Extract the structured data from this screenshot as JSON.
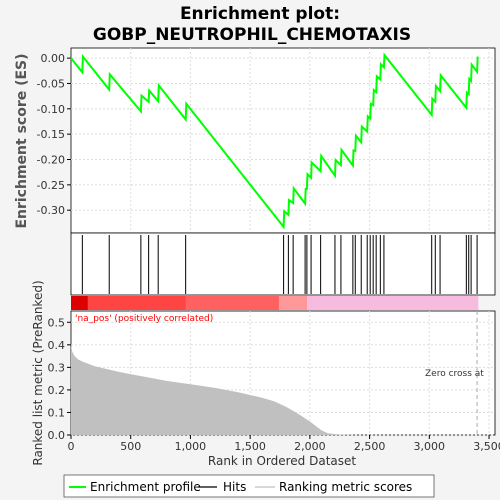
{
  "chart_data": {
    "type": "line",
    "title": "Enrichment plot:\nGOBP_NEUTROPHIL_CHEMOTAXIS",
    "title_lines": [
      "Enrichment plot:",
      "GOBP_NEUTROPHIL_CHEMOTAXIS"
    ],
    "colors": {
      "enrichment_line": "#00ff00",
      "hits": "#000000",
      "ranking_fill": "#c0c0c0",
      "positive_band": "#ff0000",
      "negative_band": "#ff88dd",
      "annotation_red": "#ff0000",
      "zero_cross_line": "#aaaaaa"
    },
    "top_panel": {
      "ylabel": "Enrichment score (ES)",
      "ylim": [
        -0.345,
        0.02
      ],
      "yticks": [
        0.0,
        -0.05,
        -0.1,
        -0.15,
        -0.2,
        -0.25,
        -0.3
      ],
      "ytick_labels": [
        "0.00",
        "-0.05",
        "-0.10",
        "-0.15",
        "-0.20",
        "-0.25",
        "-0.30"
      ],
      "grid": true,
      "enrichment_profile": [
        [
          0,
          0.0
        ],
        [
          95,
          -0.028
        ],
        [
          100,
          0.003
        ],
        [
          320,
          -0.062
        ],
        [
          325,
          -0.032
        ],
        [
          585,
          -0.105
        ],
        [
          590,
          -0.074
        ],
        [
          650,
          -0.086
        ],
        [
          655,
          -0.064
        ],
        [
          730,
          -0.085
        ],
        [
          735,
          -0.054
        ],
        [
          960,
          -0.121
        ],
        [
          965,
          -0.09
        ],
        [
          1780,
          -0.333
        ],
        [
          1785,
          -0.302
        ],
        [
          1820,
          -0.309
        ],
        [
          1825,
          -0.28
        ],
        [
          1860,
          -0.286
        ],
        [
          1865,
          -0.257
        ],
        [
          1960,
          -0.287
        ],
        [
          1965,
          -0.258
        ],
        [
          1975,
          -0.258
        ],
        [
          1980,
          -0.229
        ],
        [
          2010,
          -0.236
        ],
        [
          2015,
          -0.206
        ],
        [
          2090,
          -0.223
        ],
        [
          2095,
          -0.193
        ],
        [
          2210,
          -0.232
        ],
        [
          2215,
          -0.201
        ],
        [
          2260,
          -0.211
        ],
        [
          2265,
          -0.181
        ],
        [
          2360,
          -0.212
        ],
        [
          2365,
          -0.182
        ],
        [
          2380,
          -0.183
        ],
        [
          2385,
          -0.153
        ],
        [
          2430,
          -0.166
        ],
        [
          2435,
          -0.135
        ],
        [
          2480,
          -0.145
        ],
        [
          2485,
          -0.115
        ],
        [
          2505,
          -0.119
        ],
        [
          2510,
          -0.09
        ],
        [
          2530,
          -0.093
        ],
        [
          2535,
          -0.063
        ],
        [
          2555,
          -0.067
        ],
        [
          2560,
          -0.036
        ],
        [
          2590,
          -0.042
        ],
        [
          2595,
          -0.012
        ],
        [
          2620,
          -0.018
        ],
        [
          2625,
          0.006
        ],
        [
          3020,
          -0.112
        ],
        [
          3025,
          -0.08
        ],
        [
          3050,
          -0.086
        ],
        [
          3055,
          -0.055
        ],
        [
          3090,
          -0.065
        ],
        [
          3095,
          -0.034
        ],
        [
          3310,
          -0.098
        ],
        [
          3315,
          -0.068
        ],
        [
          3330,
          -0.071
        ],
        [
          3335,
          -0.041
        ],
        [
          3350,
          -0.045
        ],
        [
          3355,
          -0.013
        ],
        [
          3400,
          -0.027
        ],
        [
          3405,
          0.003
        ]
      ]
    },
    "hits": [
      95,
      320,
      585,
      650,
      730,
      960,
      1780,
      1820,
      1860,
      1960,
      1975,
      2010,
      2090,
      2210,
      2260,
      2360,
      2380,
      2430,
      2480,
      2505,
      2530,
      2555,
      2590,
      2620,
      3020,
      3050,
      3090,
      3310,
      3330,
      3350,
      3400
    ],
    "bottom_panel": {
      "ylabel": "Ranked list metric (PreRanked)",
      "xlabel": "Rank in Ordered Dataset",
      "xlim": [
        0,
        3550
      ],
      "xticks": [
        0,
        500,
        1000,
        1500,
        2000,
        2500,
        3000,
        3500
      ],
      "xtick_labels": [
        "0",
        "500",
        "1,000",
        "1,500",
        "2,000",
        "2,500",
        "3,000",
        "3,500"
      ],
      "ylim": [
        0,
        0.55
      ],
      "yticks": [
        0.0,
        0.1,
        0.2,
        0.3,
        0.4,
        0.5
      ],
      "ytick_labels": [
        "0.0",
        "0.1",
        "0.2",
        "0.3",
        "0.4",
        "0.5"
      ],
      "ranking_metric": [
        [
          0,
          0.4
        ],
        [
          10,
          0.37
        ],
        [
          30,
          0.35
        ],
        [
          60,
          0.335
        ],
        [
          100,
          0.325
        ],
        [
          200,
          0.305
        ],
        [
          400,
          0.28
        ],
        [
          600,
          0.26
        ],
        [
          800,
          0.24
        ],
        [
          1000,
          0.225
        ],
        [
          1200,
          0.21
        ],
        [
          1400,
          0.19
        ],
        [
          1600,
          0.165
        ],
        [
          1700,
          0.15
        ],
        [
          1800,
          0.125
        ],
        [
          1900,
          0.095
        ],
        [
          2000,
          0.06
        ],
        [
          2050,
          0.04
        ],
        [
          2100,
          0.02
        ],
        [
          2150,
          0.008
        ],
        [
          2250,
          0.002
        ],
        [
          2400,
          0.0
        ],
        [
          3410,
          0.0
        ]
      ],
      "band_positive_end": 1975,
      "annotation_positive": "'na_pos' (positively correlated)",
      "annotation_zero_cross": "Zero cross at",
      "zero_cross_x": 3400
    },
    "legend": {
      "placement": "bottom",
      "entries": [
        "Enrichment profile",
        "Hits",
        "Ranking metric scores"
      ]
    }
  }
}
